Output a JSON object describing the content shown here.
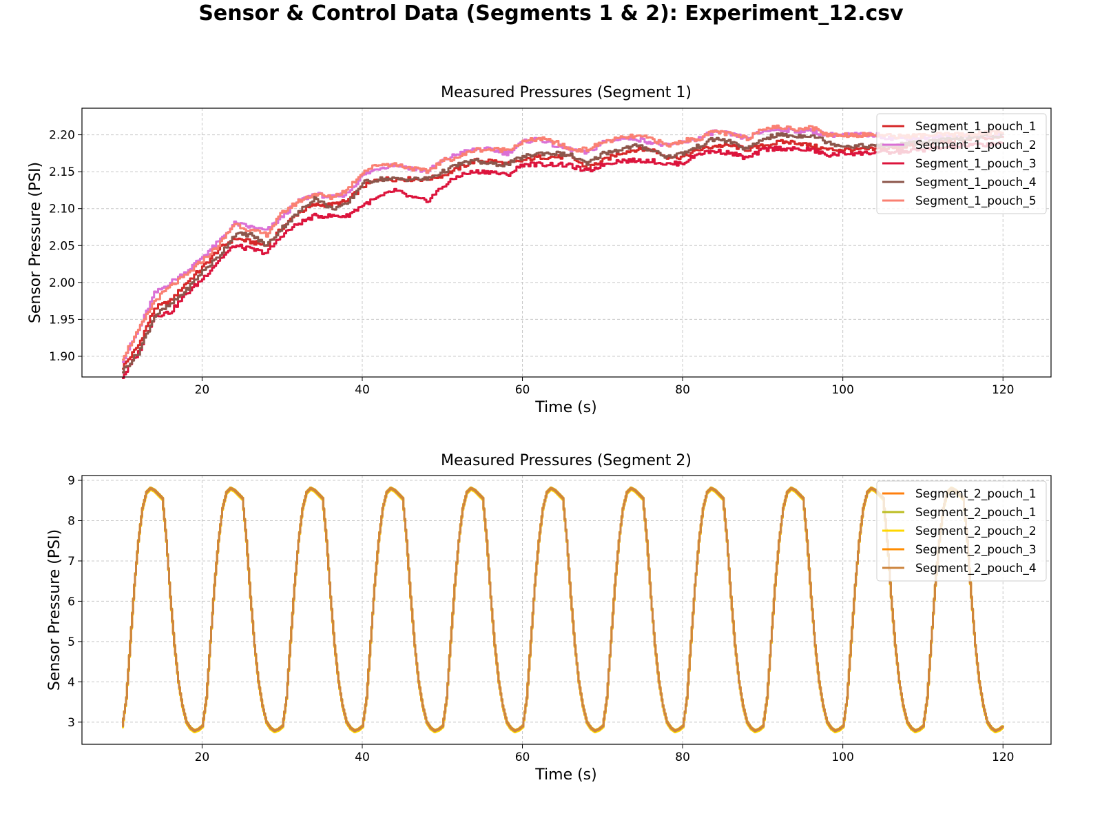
{
  "figure": {
    "title": "Sensor & Control Data (Segments 1 & 2): Experiment_12.csv"
  },
  "chart_data": [
    {
      "type": "line",
      "title": "Measured Pressures (Segment 1)",
      "xlabel": "Time (s)",
      "ylabel": "Sensor Pressure (PSI)",
      "xlim": [
        5,
        126
      ],
      "ylim": [
        1.872,
        2.236
      ],
      "xticks": [
        20,
        40,
        60,
        80,
        100,
        120
      ],
      "yticks": [
        1.9,
        1.95,
        2.0,
        2.05,
        2.1,
        2.15,
        2.2
      ],
      "ytick_labels": [
        "1.90",
        "1.95",
        "2.00",
        "2.05",
        "2.10",
        "2.15",
        "2.20"
      ],
      "grid": true,
      "legend_position": "top-right",
      "step": true,
      "x": [
        10,
        12,
        14,
        16,
        18,
        20,
        22,
        24,
        26,
        28,
        30,
        32,
        34,
        36,
        38,
        40,
        42,
        44,
        46,
        48,
        50,
        52,
        54,
        56,
        58,
        60,
        62,
        64,
        66,
        68,
        70,
        72,
        74,
        76,
        78,
        80,
        82,
        84,
        86,
        88,
        90,
        92,
        94,
        96,
        98,
        100,
        102,
        104,
        106,
        108,
        110,
        112,
        114,
        116,
        118,
        120
      ],
      "series": [
        {
          "name": "Segment_1_pouch_1",
          "color": "#d62728",
          "values": [
            1.885,
            1.915,
            1.965,
            1.975,
            2.0,
            2.02,
            2.045,
            2.06,
            2.055,
            2.05,
            2.075,
            2.095,
            2.105,
            2.105,
            2.11,
            2.13,
            2.14,
            2.14,
            2.14,
            2.14,
            2.145,
            2.155,
            2.165,
            2.165,
            2.16,
            2.165,
            2.17,
            2.17,
            2.17,
            2.155,
            2.165,
            2.175,
            2.18,
            2.18,
            2.17,
            2.17,
            2.18,
            2.185,
            2.185,
            2.18,
            2.185,
            2.19,
            2.19,
            2.185,
            2.18,
            2.18,
            2.18,
            2.18,
            2.182,
            2.185,
            2.188,
            2.19,
            2.192,
            2.195,
            2.195,
            2.196
          ]
        },
        {
          "name": "Segment_1_pouch_2",
          "color": "#da70d6",
          "values": [
            1.895,
            1.935,
            1.985,
            2.0,
            2.015,
            2.035,
            2.055,
            2.08,
            2.075,
            2.07,
            2.09,
            2.11,
            2.12,
            2.115,
            2.12,
            2.145,
            2.155,
            2.16,
            2.155,
            2.15,
            2.165,
            2.175,
            2.18,
            2.18,
            2.175,
            2.19,
            2.195,
            2.185,
            2.18,
            2.175,
            2.19,
            2.195,
            2.195,
            2.19,
            2.185,
            2.19,
            2.195,
            2.205,
            2.2,
            2.195,
            2.205,
            2.208,
            2.205,
            2.205,
            2.2,
            2.2,
            2.2,
            2.2,
            2.195,
            2.195,
            2.196,
            2.197,
            2.198,
            2.2,
            2.2,
            2.2
          ]
        },
        {
          "name": "Segment_1_pouch_3",
          "color": "#dc143c",
          "values": [
            1.872,
            1.905,
            1.955,
            1.96,
            1.985,
            2.005,
            2.03,
            2.05,
            2.045,
            2.04,
            2.065,
            2.08,
            2.09,
            2.09,
            2.09,
            2.105,
            2.115,
            2.125,
            2.115,
            2.11,
            2.13,
            2.145,
            2.15,
            2.15,
            2.145,
            2.16,
            2.16,
            2.16,
            2.158,
            2.15,
            2.16,
            2.165,
            2.165,
            2.165,
            2.16,
            2.162,
            2.175,
            2.178,
            2.175,
            2.168,
            2.18,
            2.182,
            2.18,
            2.18,
            2.172,
            2.175,
            2.175,
            2.176,
            2.176,
            2.178,
            2.18,
            2.182,
            2.184,
            2.186,
            2.187,
            2.19
          ]
        },
        {
          "name": "Segment_1_pouch_4",
          "color": "#8c564b",
          "values": [
            1.88,
            1.905,
            1.955,
            1.97,
            1.99,
            2.015,
            2.035,
            2.065,
            2.065,
            2.05,
            2.075,
            2.095,
            2.115,
            2.1,
            2.105,
            2.135,
            2.14,
            2.14,
            2.14,
            2.14,
            2.15,
            2.16,
            2.165,
            2.16,
            2.16,
            2.17,
            2.175,
            2.175,
            2.172,
            2.16,
            2.175,
            2.18,
            2.185,
            2.18,
            2.17,
            2.175,
            2.185,
            2.195,
            2.19,
            2.18,
            2.195,
            2.2,
            2.198,
            2.2,
            2.19,
            2.185,
            2.185,
            2.185,
            2.185,
            2.188,
            2.19,
            2.192,
            2.194,
            2.196,
            2.198,
            2.2
          ]
        },
        {
          "name": "Segment_1_pouch_5",
          "color": "#fa8072",
          "values": [
            1.898,
            1.935,
            1.975,
            1.995,
            2.01,
            2.03,
            2.05,
            2.08,
            2.07,
            2.065,
            2.095,
            2.11,
            2.12,
            2.115,
            2.125,
            2.15,
            2.16,
            2.16,
            2.155,
            2.15,
            2.165,
            2.17,
            2.18,
            2.18,
            2.18,
            2.19,
            2.195,
            2.19,
            2.18,
            2.18,
            2.19,
            2.195,
            2.198,
            2.195,
            2.185,
            2.192,
            2.195,
            2.205,
            2.2,
            2.195,
            2.21,
            2.21,
            2.208,
            2.21,
            2.2,
            2.2,
            2.2,
            2.2,
            2.198,
            2.198,
            2.199,
            2.2,
            2.2,
            2.201,
            2.202,
            2.204
          ]
        }
      ]
    },
    {
      "type": "line",
      "title": "Measured Pressures (Segment 2)",
      "xlabel": "Time (s)",
      "ylabel": "Sensor Pressure (PSI)",
      "xlim": [
        5,
        126
      ],
      "ylim": [
        2.45,
        9.12
      ],
      "xticks": [
        20,
        40,
        60,
        80,
        100,
        120
      ],
      "yticks": [
        3,
        4,
        5,
        6,
        7,
        8,
        9
      ],
      "ytick_labels": [
        "3",
        "4",
        "5",
        "6",
        "7",
        "8",
        "9"
      ],
      "grid": true,
      "legend_position": "top-right",
      "step": true,
      "waveform": "periodic, period 10 s, min ~2.8 PSI, max ~8.8 PSI",
      "x": [
        10,
        10.5,
        11,
        11.5,
        12,
        12.5,
        13,
        13.5,
        14,
        14.5,
        15,
        15.5,
        16,
        16.5,
        17,
        17.5,
        18,
        18.5,
        19,
        19.5,
        20
      ],
      "cycle_values": [
        2.9,
        3.6,
        5.0,
        6.4,
        7.5,
        8.3,
        8.7,
        8.8,
        8.75,
        8.65,
        8.55,
        7.5,
        6.1,
        4.9,
        4.0,
        3.4,
        3.0,
        2.85,
        2.78,
        2.82,
        2.9
      ],
      "cycles": 11,
      "series": [
        {
          "name": "Segment_2_pouch_1",
          "color": "#ff7f0e",
          "offset": 0.0
        },
        {
          "name": "Segment_2_pouch_1",
          "color": "#bcbd22",
          "offset": 0.02
        },
        {
          "name": "Segment_2_pouch_2",
          "color": "#ffd700",
          "offset": -0.03
        },
        {
          "name": "Segment_2_pouch_3",
          "color": "#ff8c00",
          "offset": 0.01
        },
        {
          "name": "Segment_2_pouch_4",
          "color": "#cd853f",
          "offset": 0.0
        }
      ]
    }
  ]
}
